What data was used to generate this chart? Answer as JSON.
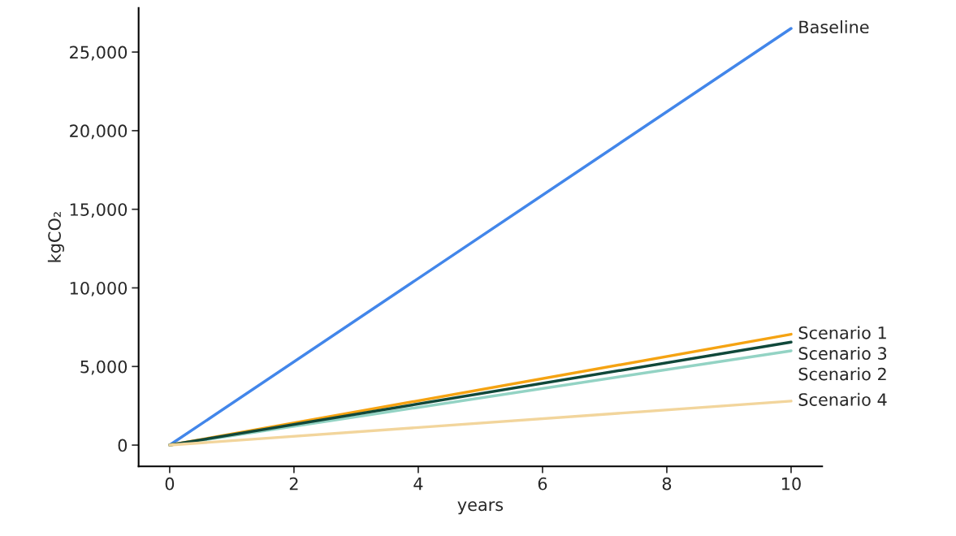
{
  "chart_data": {
    "type": "line",
    "xlabel": "years",
    "ylabel": "kgCO₂",
    "x": [
      0,
      10
    ],
    "series": [
      {
        "name": "Baseline",
        "color": "#4286ea",
        "values": [
          0,
          26500
        ]
      },
      {
        "name": "Scenario 1",
        "color": "#f5a312",
        "values": [
          0,
          7050
        ]
      },
      {
        "name": "Scenario 2",
        "color": "#93d3c4",
        "values": [
          0,
          6000
        ]
      },
      {
        "name": "Scenario 3",
        "color": "#10483a",
        "values": [
          0,
          6550
        ]
      },
      {
        "name": "Scenario 4",
        "color": "#f2d59c",
        "values": [
          0,
          2800
        ]
      }
    ],
    "xlim": [
      -0.5,
      10.5
    ],
    "ylim": [
      -1350,
      27800
    ],
    "xticks": [
      0,
      2,
      4,
      6,
      8,
      10
    ],
    "yticks": [
      0,
      {
        "value": 5000,
        "label": "5,000"
      },
      {
        "value": 10000,
        "label": "10,000"
      },
      {
        "value": 15000,
        "label": "15,000"
      },
      {
        "value": 20000,
        "label": "20,000"
      },
      {
        "value": 25000,
        "label": "25,000"
      }
    ],
    "grid": false,
    "legend": false,
    "marker": "none",
    "line_style": "solid"
  }
}
